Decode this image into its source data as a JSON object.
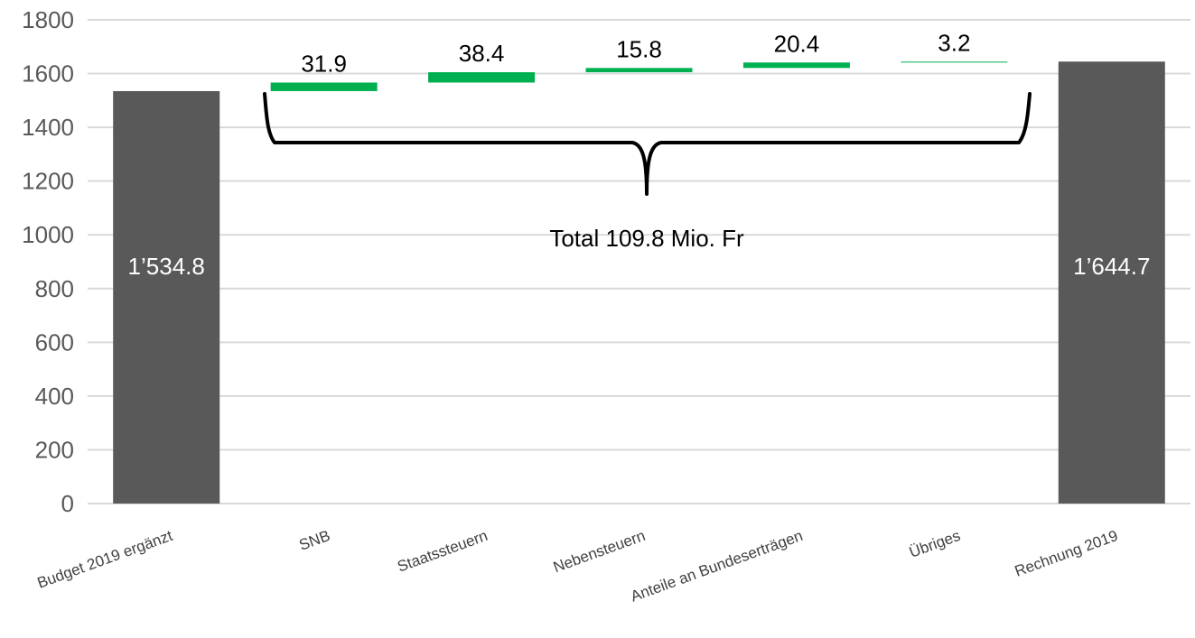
{
  "chart_data": {
    "type": "bar",
    "subtype": "waterfall",
    "categories": [
      "Budget 2019 ergänzt",
      "SNB",
      "Staatssteuern",
      "Nebensteuern",
      "Anteile an Bundeserträgen",
      "Übriges",
      "Rechnung 2019"
    ],
    "values": [
      1534.8,
      31.9,
      38.4,
      15.8,
      20.4,
      3.2,
      1644.7
    ],
    "bar_roles": [
      "total",
      "increase",
      "increase",
      "increase",
      "increase",
      "increase",
      "total"
    ],
    "data_labels": [
      "1’534.8",
      "31.9",
      "38.4",
      "15.8",
      "20.4",
      "3.2",
      "1’644.7"
    ],
    "ylim": [
      0,
      1800
    ],
    "yticks": [
      "0",
      "200",
      "400",
      "600",
      "800",
      "1000",
      "1200",
      "1400",
      "1600",
      "1800"
    ],
    "grid": true,
    "legend": "none",
    "colors": {
      "total": "#595959",
      "increase": "#00B050",
      "grid": "#D9D9D9",
      "axis_text": "#595959"
    },
    "annotation": "Total 109.8 Mio. Fr",
    "title": "",
    "xlabel": "",
    "ylabel": ""
  }
}
